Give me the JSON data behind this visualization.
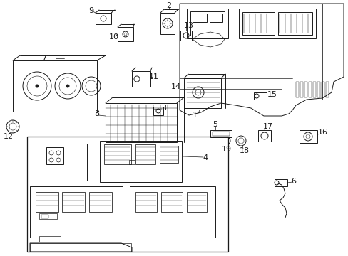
{
  "bg_color": "#ffffff",
  "line_color": "#1a1a1a",
  "lw": 0.7,
  "label_fs": 8
}
